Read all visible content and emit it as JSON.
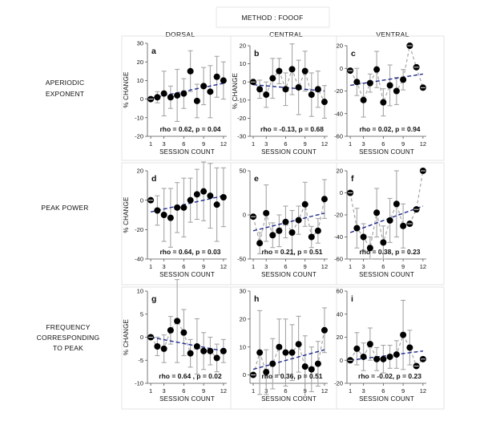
{
  "figure": {
    "title": "METHOD : FOOOF",
    "columns": [
      "DORSAL",
      "CENTRAL",
      "VENTRAL"
    ],
    "rows": [
      [
        "APERIODIC",
        "EXPONENT"
      ],
      [
        "PEAK POWER"
      ],
      [
        "FREQUENCY",
        "CORRESPONDING",
        "TO PEAK"
      ]
    ],
    "ylabel": "% CHANGE",
    "xlabel": "SESSION COUNT",
    "colors": {
      "marker": "#000000",
      "errorbar": "#a6a6a6",
      "connector": "#a6a6a6",
      "fit": "#1f2a8c",
      "panel_border": "#e3e3e3"
    }
  },
  "chart_data": [
    {
      "type": "scatter",
      "panel": "a",
      "column": "DORSAL",
      "row": "APERIODIC EXPONENT",
      "title": "",
      "xlabel": "SESSION COUNT",
      "ylabel": "% CHANGE",
      "x": [
        1,
        2,
        3,
        4,
        5,
        6,
        7,
        8,
        9,
        10,
        11,
        12
      ],
      "xticks": [
        1,
        3,
        6,
        9,
        12
      ],
      "y": [
        0,
        1,
        3,
        1,
        2,
        3,
        15,
        -1,
        7,
        4,
        12,
        10
      ],
      "err": [
        0,
        3,
        12,
        6,
        14,
        8,
        11,
        9,
        10,
        14,
        11,
        10
      ],
      "ylim": [
        -20,
        30
      ],
      "yticks": [
        -20,
        -10,
        0,
        10,
        20,
        30
      ],
      "fit": [
        0.5,
        8.5
      ],
      "connector": false,
      "stat": "rho = 0.62, p = 0.04"
    },
    {
      "type": "scatter",
      "panel": "b",
      "column": "CENTRAL",
      "row": "APERIODIC EXPONENT",
      "title": "",
      "xlabel": "SESSION COUNT",
      "ylabel": "% CHANGE",
      "x": [
        1,
        2,
        3,
        4,
        5,
        6,
        7,
        8,
        9,
        10,
        11,
        12
      ],
      "xticks": [
        1,
        3,
        6,
        9,
        12
      ],
      "y": [
        0,
        -4,
        -7,
        2,
        6,
        -4,
        7,
        -3,
        6,
        -7,
        -4,
        -11
      ],
      "err": [
        0,
        5,
        7,
        11,
        7,
        9,
        14,
        15,
        11,
        12,
        10,
        9
      ],
      "ylim": [
        -30,
        20
      ],
      "yticks": [
        -30,
        -20,
        -10,
        0,
        10,
        20
      ],
      "fit": [
        -1.5,
        -5
      ],
      "connector": true,
      "stat": "rho = -0.13, p = 0.68"
    },
    {
      "type": "scatter",
      "panel": "c",
      "column": "VENTRAL",
      "row": "APERIODIC EXPONENT",
      "title": "",
      "xlabel": "SESSION COUNT",
      "ylabel": "",
      "x": [
        1,
        2,
        3,
        4,
        5,
        6,
        7,
        8,
        9,
        10,
        11,
        12
      ],
      "xticks": [
        1,
        3,
        6,
        9,
        12
      ],
      "y": [
        -2,
        -12,
        -28,
        -13,
        -1,
        -30,
        -15,
        -20,
        -10,
        20,
        1,
        -17
      ],
      "err": [
        0,
        12,
        15,
        8,
        16,
        12,
        18,
        12,
        9,
        0,
        0,
        0
      ],
      "ylim": [
        -60,
        20
      ],
      "yticks": [
        -60,
        -40,
        -20,
        0,
        20
      ],
      "fit": [
        -15,
        -5
      ],
      "connector": true,
      "stat": "rho = 0.02, p = 0.94"
    },
    {
      "type": "scatter",
      "panel": "d",
      "column": "DORSAL",
      "row": "PEAK POWER",
      "title": "",
      "xlabel": "SESSION COUNT",
      "ylabel": "% CHANGE",
      "x": [
        1,
        2,
        3,
        4,
        5,
        6,
        7,
        8,
        9,
        10,
        11,
        12
      ],
      "xticks": [
        1,
        3,
        6,
        9,
        12
      ],
      "y": [
        0,
        -7,
        -10,
        -12,
        -5,
        -5,
        0,
        4,
        6,
        3,
        -3,
        2
      ],
      "err": [
        0,
        10,
        18,
        20,
        17,
        20,
        15,
        17,
        20,
        22,
        25,
        20
      ],
      "ylim": [
        -40,
        20
      ],
      "yticks": [
        -40,
        -20,
        0,
        20
      ],
      "fit": [
        -8,
        3
      ],
      "connector": false,
      "stat": "rho = 0.64, p = 0.03"
    },
    {
      "type": "scatter",
      "panel": "e",
      "column": "CENTRAL",
      "row": "PEAK POWER",
      "title": "",
      "xlabel": "SESSION COUNT",
      "ylabel": "",
      "x": [
        1,
        2,
        3,
        4,
        5,
        6,
        7,
        8,
        9,
        10,
        11,
        12
      ],
      "xticks": [
        1,
        3,
        6,
        9,
        12
      ],
      "y": [
        -2,
        -32,
        2,
        -23,
        -18,
        -8,
        -20,
        -6,
        12,
        -25,
        -18,
        18
      ],
      "err": [
        0,
        12,
        32,
        14,
        18,
        18,
        25,
        16,
        25,
        12,
        14,
        22
      ],
      "ylim": [
        -50,
        50
      ],
      "yticks": [
        -50,
        0,
        50
      ],
      "fit": [
        -18,
        2
      ],
      "connector": true,
      "stat": "rho = 0.21, p = 0.51"
    },
    {
      "type": "scatter",
      "panel": "f",
      "column": "VENTRAL",
      "row": "PEAK POWER",
      "title": "",
      "xlabel": "SESSION COUNT",
      "ylabel": "",
      "x": [
        1,
        2,
        3,
        4,
        5,
        6,
        7,
        8,
        9,
        10,
        11,
        12
      ],
      "xticks": [
        1,
        3,
        6,
        9,
        12
      ],
      "y": [
        0,
        -32,
        -40,
        -50,
        -18,
        -45,
        -25,
        -10,
        -30,
        -28,
        -15,
        20
      ],
      "err": [
        0,
        18,
        12,
        10,
        22,
        15,
        20,
        30,
        20,
        0,
        0,
        0
      ],
      "ylim": [
        -60,
        20
      ],
      "yticks": [
        -60,
        -40,
        -20,
        0,
        20
      ],
      "fit": [
        -36,
        -12
      ],
      "connector": true,
      "stat": "rho = 0.38, p = 0.23"
    },
    {
      "type": "scatter",
      "panel": "g",
      "column": "DORSAL",
      "row": "FREQUENCY CORRESPONDING TO PEAK",
      "title": "",
      "xlabel": "SESSION COUNT",
      "ylabel": "% CHANGE",
      "x": [
        1,
        2,
        3,
        4,
        5,
        6,
        7,
        8,
        9,
        10,
        11,
        12
      ],
      "xticks": [
        1,
        3,
        6,
        9,
        12
      ],
      "y": [
        0,
        -2,
        -2.5,
        1.5,
        3.5,
        1,
        -3.5,
        -2,
        -3,
        -3,
        -4.5,
        -3
      ],
      "err": [
        0,
        2,
        3,
        3,
        9,
        5,
        3,
        6,
        4,
        3,
        3,
        2.5
      ],
      "ylim": [
        -10,
        10
      ],
      "yticks": [
        -10,
        -5,
        0,
        5,
        10
      ],
      "fit": [
        0,
        -3
      ],
      "connector": true,
      "stat": "rho = 0.64 , p = 0.02"
    },
    {
      "type": "scatter",
      "panel": "h",
      "column": "CENTRAL",
      "row": "FREQUENCY CORRESPONDING TO PEAK",
      "title": "",
      "xlabel": "SESSION COUNT",
      "ylabel": "",
      "x": [
        1,
        2,
        3,
        4,
        5,
        6,
        7,
        8,
        9,
        10,
        11,
        12
      ],
      "xticks": [
        1,
        3,
        6,
        9,
        12
      ],
      "y": [
        0,
        8,
        1,
        4,
        10,
        8,
        8,
        11,
        3,
        2,
        4,
        16
      ],
      "err": [
        0,
        15,
        8,
        9,
        10,
        12,
        10,
        10,
        11,
        8,
        8,
        8
      ],
      "ylim": [
        -3,
        30
      ],
      "yticks": [
        0,
        10,
        20,
        30
      ],
      "fit": [
        2,
        9
      ],
      "connector": true,
      "stat": "rho = 0.36, p = 0.51"
    },
    {
      "type": "scatter",
      "panel": "i",
      "column": "VENTRAL",
      "row": "FREQUENCY CORRESPONDING TO PEAK",
      "title": "",
      "xlabel": "SESSION COUNT",
      "ylabel": "",
      "x": [
        1,
        2,
        3,
        4,
        5,
        6,
        7,
        8,
        9,
        10,
        11,
        12
      ],
      "xticks": [
        1,
        3,
        6,
        9,
        12
      ],
      "y": [
        0,
        10,
        3,
        14,
        1,
        1,
        3,
        5,
        22,
        11,
        -5,
        1
      ],
      "err": [
        0,
        14,
        12,
        14,
        10,
        12,
        10,
        12,
        30,
        15,
        0,
        0
      ],
      "ylim": [
        -20,
        60
      ],
      "yticks": [
        -20,
        0,
        20,
        40,
        60
      ],
      "fit": [
        0,
        8
      ],
      "connector": true,
      "stat": "rho = -0.02, p = 0.23"
    }
  ]
}
